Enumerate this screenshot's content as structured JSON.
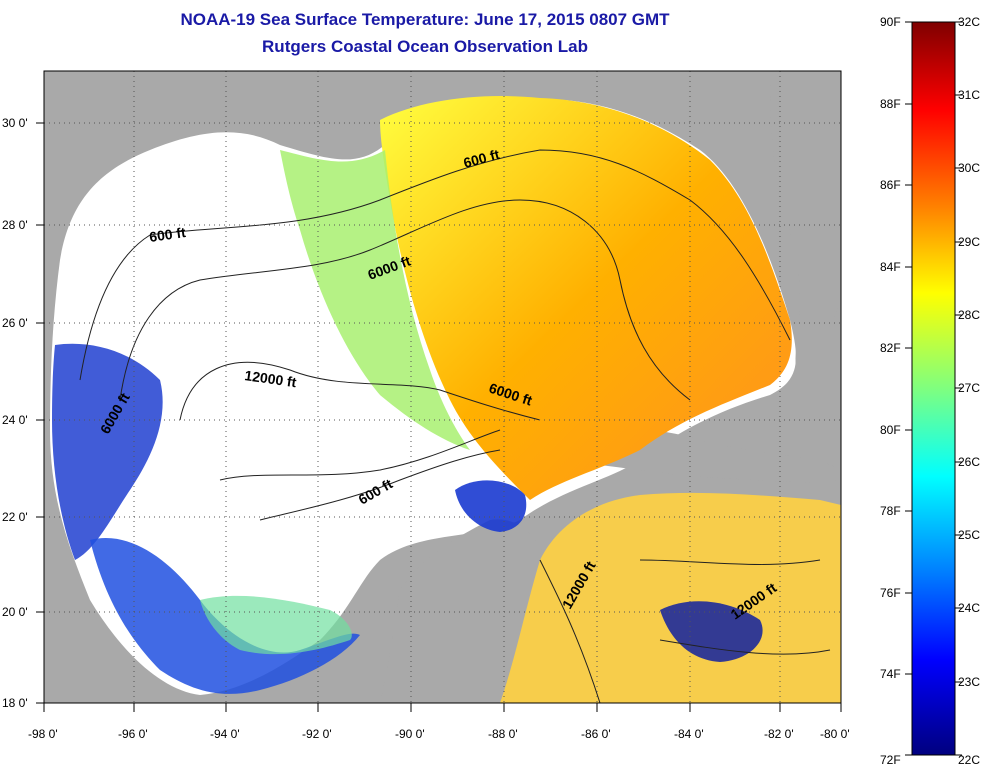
{
  "title": {
    "line1": "NOAA-19 Sea Surface Temperature:  June 17, 2015 0807 GMT",
    "line2": "Rutgers Coastal Ocean Observation Lab"
  },
  "axes": {
    "longitude_ticks": [
      "-98 0'",
      "-96 0'",
      "-94 0'",
      "-92 0'",
      "-90 0'",
      "-88 0'",
      "-86 0'",
      "-84 0'",
      "-82 0'",
      "-80 0'"
    ],
    "latitude_ticks": [
      "30 0'",
      "28 0'",
      "26 0'",
      "24 0'",
      "22 0'",
      "20 0'",
      "18 0'"
    ],
    "lon_range": [
      -98,
      -80
    ],
    "lat_range": [
      18,
      31
    ]
  },
  "contours": [
    {
      "label": "600 ft"
    },
    {
      "label": "600 ft"
    },
    {
      "label": "600 ft"
    },
    {
      "label": "6000 ft"
    },
    {
      "label": "6000 ft"
    },
    {
      "label": "6000 ft"
    },
    {
      "label": "12000 ft"
    },
    {
      "label": "12000 ft"
    },
    {
      "label": "12000 ft"
    }
  ],
  "colorbar": {
    "fahrenheit": [
      "90F",
      "88F",
      "86F",
      "84F",
      "82F",
      "80F",
      "78F",
      "76F",
      "74F",
      "72F"
    ],
    "celsius": [
      "32C",
      "31C",
      "30C",
      "29C",
      "28C",
      "27C",
      "26C",
      "25C",
      "24C",
      "23C",
      "22C"
    ],
    "colors": [
      "#7f0000",
      "#ff0000",
      "#ff7f00",
      "#ffff00",
      "#7fff7f",
      "#00ffff",
      "#007fff",
      "#0000ff",
      "#00007f"
    ]
  },
  "colors": {
    "land": "#a9a9a9",
    "cloud": "#ffffff",
    "title": "#1a1aa6"
  }
}
